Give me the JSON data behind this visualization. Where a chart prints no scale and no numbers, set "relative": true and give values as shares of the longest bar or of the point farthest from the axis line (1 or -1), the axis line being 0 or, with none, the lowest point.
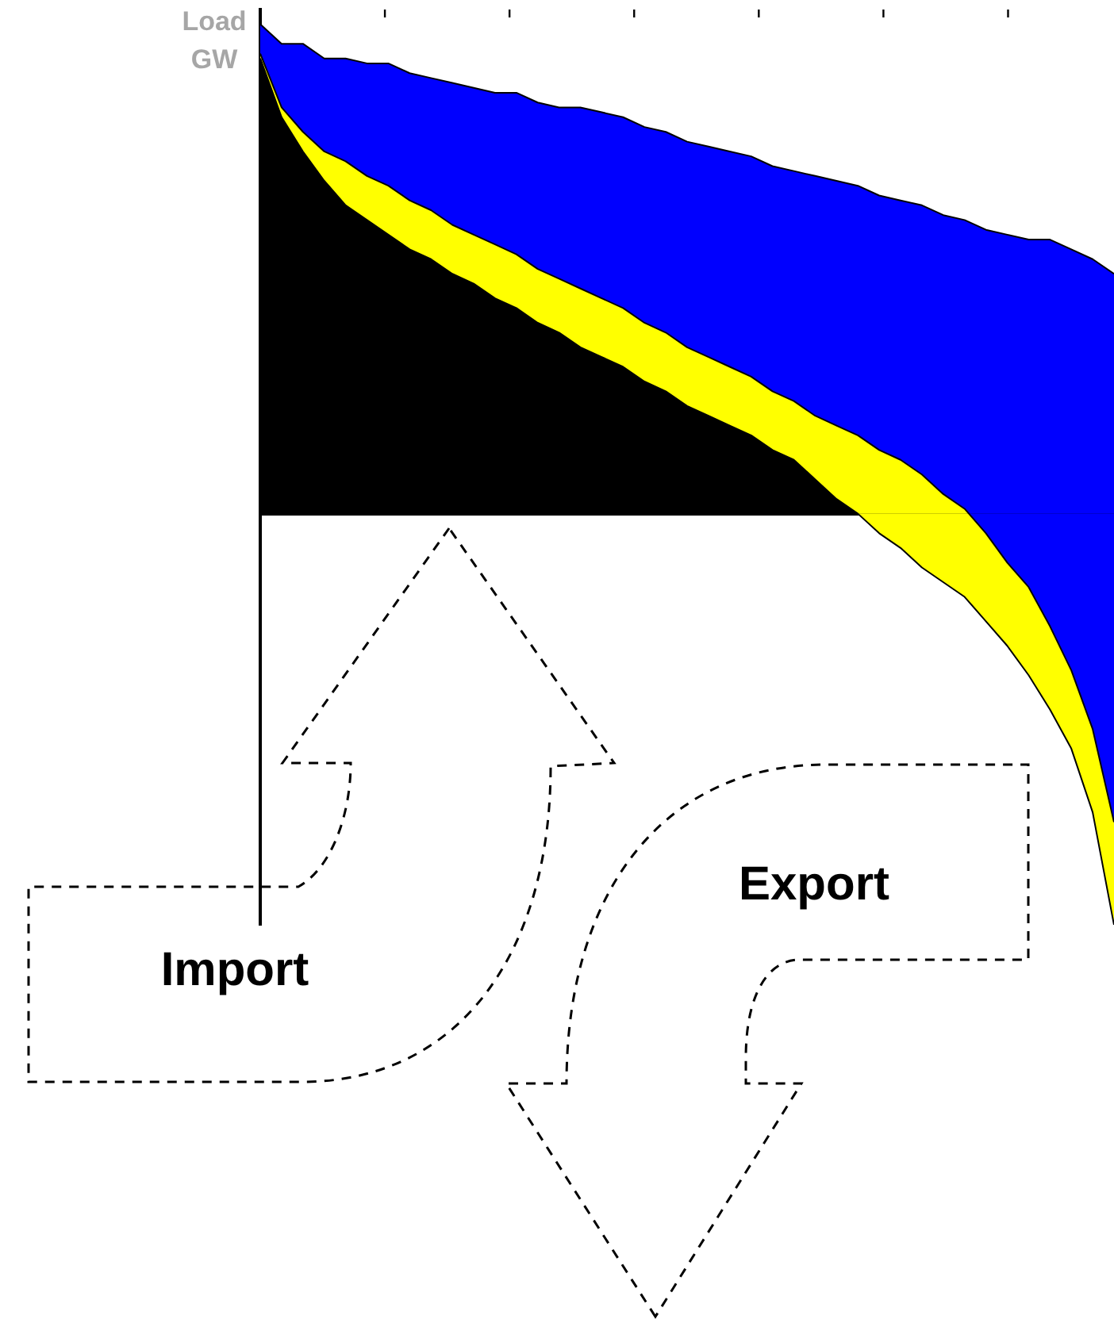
{
  "chart_data": {
    "type": "area",
    "ylabel": "Load GW",
    "relative": true,
    "stacked": true,
    "legend": false,
    "grid": false,
    "annotations": [
      "Import",
      "Export"
    ],
    "categories": [
      null,
      null,
      null,
      null,
      null,
      null,
      null,
      null,
      null,
      null,
      null,
      null,
      null,
      null,
      null,
      null,
      null,
      null,
      null,
      null,
      null,
      null,
      null,
      null,
      null,
      null,
      null,
      null,
      null,
      null,
      null,
      null,
      null,
      null,
      null,
      null,
      null,
      null,
      null,
      null,
      null
    ],
    "series": [
      {
        "color": "#000000",
        "values": [
          0.93,
          0.81,
          0.74,
          0.68,
          0.63,
          0.6,
          0.57,
          0.54,
          0.52,
          0.49,
          0.47,
          0.44,
          0.42,
          0.39,
          0.37,
          0.34,
          0.32,
          0.3,
          0.27,
          0.25,
          0.22,
          0.2,
          0.18,
          0.16,
          0.13,
          0.11,
          0.07,
          0.03,
          0.0,
          -0.04,
          -0.07,
          -0.11,
          -0.14,
          -0.17,
          -0.22,
          -0.27,
          -0.33,
          -0.4,
          -0.48,
          -0.61,
          -0.84
        ]
      },
      {
        "color": "#ffff00",
        "values": [
          0.01,
          0.02,
          0.04,
          0.06,
          0.09,
          0.09,
          0.1,
          0.1,
          0.1,
          0.1,
          0.1,
          0.11,
          0.11,
          0.11,
          0.11,
          0.12,
          0.12,
          0.12,
          0.12,
          0.12,
          0.12,
          0.12,
          0.12,
          0.12,
          0.12,
          0.12,
          0.13,
          0.15,
          0.16,
          0.17,
          0.18,
          0.19,
          0.18,
          0.18,
          0.18,
          0.17,
          0.18,
          0.17,
          0.16,
          0.17,
          0.21
        ]
      },
      {
        "color": "#0000ff",
        "values": [
          0.06,
          0.13,
          0.18,
          0.19,
          0.21,
          0.23,
          0.25,
          0.26,
          0.27,
          0.29,
          0.3,
          0.31,
          0.33,
          0.34,
          0.35,
          0.37,
          0.38,
          0.39,
          0.4,
          0.41,
          0.42,
          0.43,
          0.44,
          0.45,
          0.46,
          0.47,
          0.49,
          0.5,
          0.51,
          0.52,
          0.53,
          0.55,
          0.57,
          0.59,
          0.62,
          0.67,
          0.71,
          0.79,
          0.86,
          0.96,
          1.12
        ]
      }
    ]
  }
}
